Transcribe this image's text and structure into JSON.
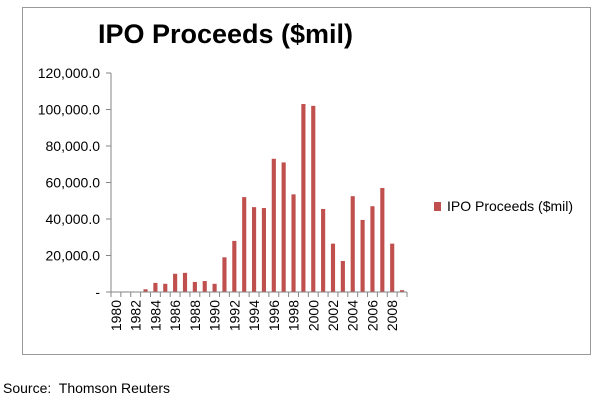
{
  "chart_data": {
    "type": "bar",
    "title": "IPO Proceeds ($mil)",
    "xlabel": "",
    "ylabel": "",
    "categories": [
      "1980",
      "1981",
      "1982",
      "1983",
      "1984",
      "1985",
      "1986",
      "1987",
      "1988",
      "1989",
      "1990",
      "1991",
      "1992",
      "1993",
      "1994",
      "1995",
      "1996",
      "1997",
      "1998",
      "1999",
      "2000",
      "2001",
      "2002",
      "2003",
      "2004",
      "2005",
      "2006",
      "2007",
      "2008",
      "2009"
    ],
    "series": [
      {
        "name": "IPO Proceeds ($mil)",
        "values": [
          200,
          300,
          200,
          1500,
          5000,
          4500,
          10000,
          10500,
          5500,
          6000,
          4500,
          19000,
          28000,
          52000,
          46500,
          46000,
          73000,
          71000,
          53500,
          103000,
          102000,
          45500,
          26500,
          17000,
          52500,
          39500,
          47000,
          57000,
          26500,
          1000
        ]
      }
    ],
    "x_tick_labels": [
      "1980",
      "1982",
      "1984",
      "1986",
      "1988",
      "1990",
      "1992",
      "1994",
      "1996",
      "1998",
      "2000",
      "2002",
      "2004",
      "2006",
      "2008"
    ],
    "y_tick_labels": [
      "-",
      "20,000.0",
      "40,000.0",
      "60,000.0",
      "80,000.0",
      "100,000.0",
      "120,000.0"
    ],
    "ylim": [
      0,
      120000
    ],
    "grid": false,
    "legend_position": "right",
    "colors": {
      "bar": "#c0504d",
      "axis": "#868686"
    }
  },
  "source_note": "Source:  Thomson Reuters"
}
